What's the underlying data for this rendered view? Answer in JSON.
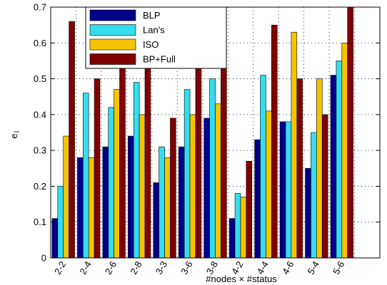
{
  "chart_data": {
    "type": "bar",
    "categories": [
      "2-2",
      "2-4",
      "2-6",
      "2-8",
      "3-3",
      "3-6",
      "3-8",
      "4-2",
      "4-4",
      "4-6",
      "5-4",
      "5-6"
    ],
    "series": [
      {
        "name": "BLP",
        "color": "#00008b",
        "values": [
          0.11,
          0.28,
          0.31,
          0.34,
          0.21,
          0.31,
          0.39,
          0.11,
          0.33,
          0.38,
          0.25,
          0.51
        ]
      },
      {
        "name": "Lan's",
        "color": "#33ddee",
        "values": [
          0.2,
          0.46,
          0.42,
          0.49,
          0.31,
          0.47,
          0.5,
          0.18,
          0.51,
          0.38,
          0.35,
          0.55
        ]
      },
      {
        "name": "ISO",
        "color": "#f5c400",
        "values": [
          0.34,
          0.28,
          0.47,
          0.4,
          0.28,
          0.4,
          0.43,
          0.17,
          0.41,
          0.63,
          0.5,
          0.6
        ]
      },
      {
        "name": "BP+Full",
        "color": "#800000",
        "values": [
          0.66,
          0.5,
          0.55,
          0.55,
          0.39,
          0.57,
          0.53,
          0.27,
          0.65,
          0.5,
          0.4,
          0.7
        ]
      }
    ],
    "xlabel": "#nodes × #status",
    "ylabel_main": "e",
    "ylabel_sub": "l",
    "ylim": [
      0,
      0.7
    ],
    "yticks": [
      "0",
      "0.1",
      "0.2",
      "0.3",
      "0.4",
      "0.5",
      "0.6",
      "0.7"
    ],
    "slots": 13,
    "grid": true,
    "legend_position": "top-left"
  }
}
